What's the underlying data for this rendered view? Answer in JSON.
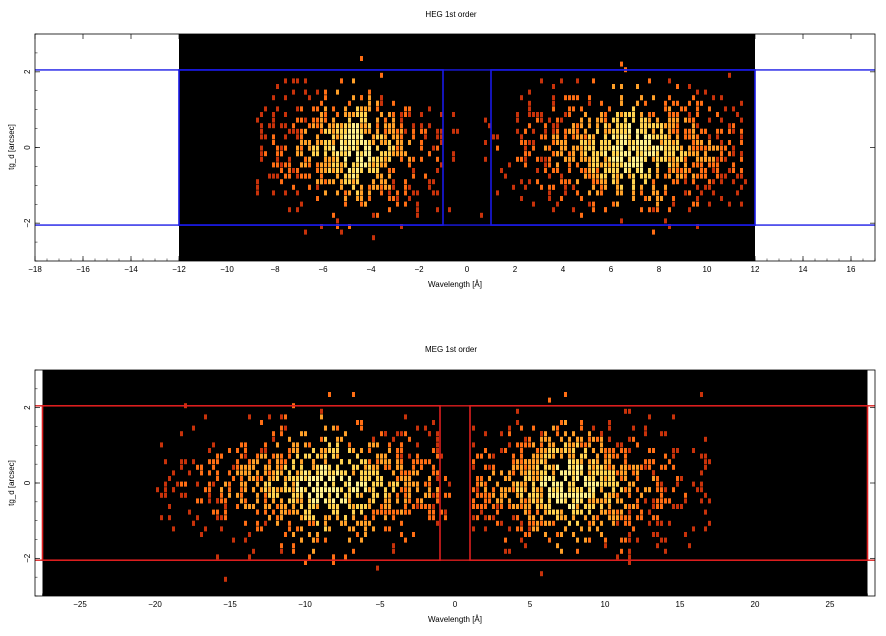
{
  "chart_data": [
    {
      "type": "heatmap",
      "title": "HEG 1st order",
      "xlabel": "Wavelength [Å]",
      "ylabel": "tg_d [arcsec]",
      "xlim": [
        -18,
        17
      ],
      "ylim": [
        -3,
        3
      ],
      "x_ticks": [
        -18,
        -16,
        -14,
        -12,
        -10,
        -8,
        -6,
        -4,
        -2,
        0,
        2,
        4,
        6,
        8,
        10,
        12,
        14,
        16
      ],
      "y_ticks": [
        -2,
        0,
        2
      ],
      "image_extent_x": [
        -12,
        12
      ],
      "image_background": "#000000",
      "grid": false,
      "extraction_regions": [
        {
          "x": [
            -12,
            -1
          ],
          "y": [
            -2.05,
            2.05
          ]
        },
        {
          "x": [
            1,
            12
          ],
          "y": [
            -2.05,
            2.05
          ]
        }
      ],
      "region_color": "#1a1ae6",
      "horizontal_lines_y": [
        -2.05,
        2.05
      ],
      "clusters": [
        {
          "x_center": -4.8,
          "x_range": [
            -8,
            -1.5
          ],
          "y_sigma": 0.9,
          "intensity": "medium"
        },
        {
          "x_center": 6.8,
          "x_range": [
            1.5,
            10.5
          ],
          "y_sigma": 0.9,
          "intensity": "high"
        }
      ],
      "colors": [
        "#c8320a",
        "#ff6e14",
        "#ffa028",
        "#ffd250",
        "#fff08c"
      ]
    },
    {
      "type": "heatmap",
      "title": "MEG 1st order",
      "xlabel": "Wavelength [Å]",
      "ylabel": "tg_d [arcsec]",
      "xlim": [
        -28,
        28
      ],
      "ylim": [
        -3,
        3
      ],
      "x_ticks": [
        -25,
        -20,
        -15,
        -10,
        -5,
        0,
        5,
        10,
        15,
        20,
        25
      ],
      "y_ticks": [
        -2,
        0,
        2
      ],
      "image_extent_x": [
        -27.5,
        27.5
      ],
      "image_background": "#000000",
      "grid": false,
      "extraction_regions": [
        {
          "x": [
            -27.5,
            -1
          ],
          "y": [
            -2.05,
            2.05
          ]
        },
        {
          "x": [
            1,
            27.5
          ],
          "y": [
            -2.05,
            2.05
          ]
        }
      ],
      "region_color": "#dc1e1e",
      "horizontal_lines_y": [
        -2.05,
        2.05
      ],
      "clusters": [
        {
          "x_center": -8.5,
          "x_range": [
            -19,
            -1.5
          ],
          "y_sigma": 0.9,
          "intensity": "high"
        },
        {
          "x_center": 7.5,
          "x_range": [
            2,
            16
          ],
          "y_sigma": 0.9,
          "intensity": "high"
        }
      ],
      "colors": [
        "#c8320a",
        "#ff6e14",
        "#ffa028",
        "#ffd250",
        "#fff08c"
      ]
    }
  ]
}
